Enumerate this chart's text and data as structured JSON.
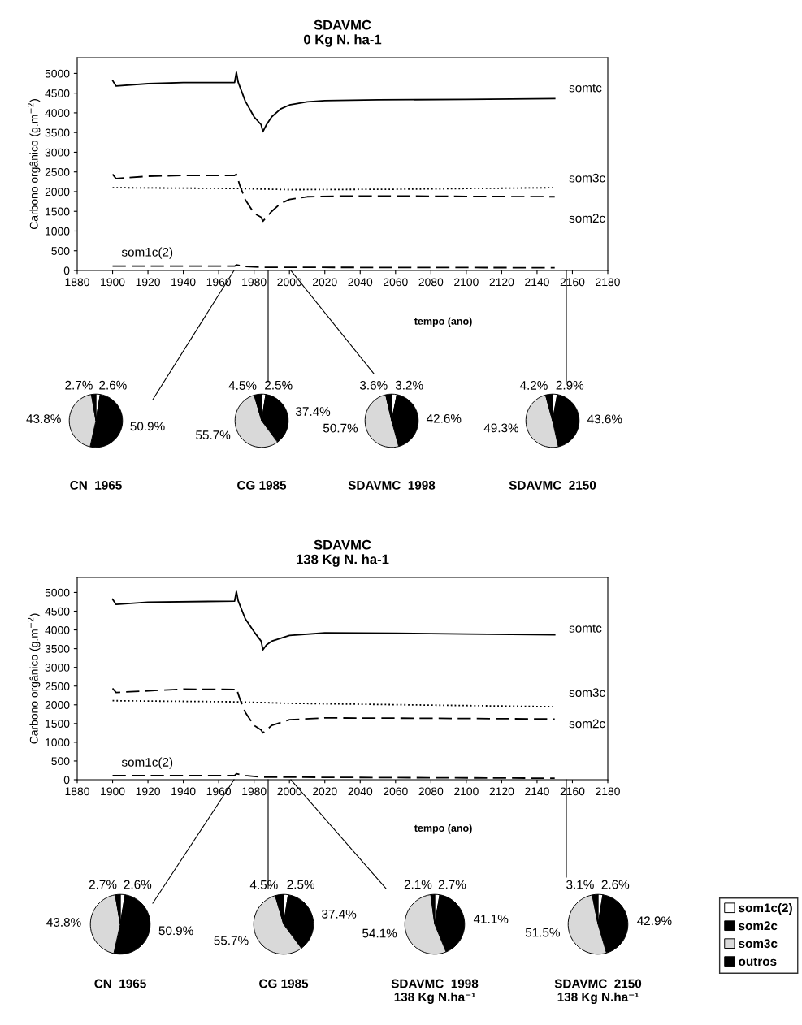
{
  "chart_data": [
    {
      "type": "line",
      "title": "SDAVMC\n0 Kg N. ha-1",
      "xlabel": "tempo (ano)",
      "ylabel": "Carbono orgânico (g.m$^{−2}$)",
      "xlim": [
        1880,
        2180
      ],
      "xticks": [
        1880,
        1900,
        1920,
        1940,
        1960,
        1980,
        2000,
        2020,
        2040,
        2060,
        2080,
        2100,
        2120,
        2140,
        2160,
        2180
      ],
      "ylim": [
        0,
        5400
      ],
      "yticks": [
        0,
        500,
        1000,
        1500,
        2000,
        2500,
        3000,
        3500,
        4000,
        4500,
        5000
      ],
      "series": [
        {
          "name": "somtc",
          "color": "#000000",
          "line_style": "solid",
          "x": [
            1900,
            1902,
            1920,
            1940,
            1969,
            1970,
            1971,
            1975,
            1980,
            1984,
            1985,
            1987,
            1990,
            1995,
            2000,
            2010,
            2020,
            2050,
            2100,
            2150
          ],
          "values": [
            4820,
            4680,
            4740,
            4770,
            4770,
            5030,
            4780,
            4300,
            3900,
            3700,
            3520,
            3700,
            3900,
            4100,
            4200,
            4280,
            4310,
            4330,
            4340,
            4360
          ]
        },
        {
          "name": "som2c",
          "color": "#000000",
          "line_style": "dashed",
          "x": [
            1900,
            1902,
            1920,
            1940,
            1969,
            1970,
            1972,
            1975,
            1980,
            1984,
            1985,
            1987,
            1990,
            1995,
            2000,
            2010,
            2030,
            2060,
            2100,
            2150
          ],
          "values": [
            2440,
            2330,
            2390,
            2410,
            2410,
            2440,
            2150,
            1800,
            1450,
            1350,
            1250,
            1350,
            1500,
            1700,
            1800,
            1870,
            1890,
            1890,
            1880,
            1870
          ]
        },
        {
          "name": "som3c",
          "color": "#000000",
          "line_style": "dotted",
          "x": [
            1900,
            1970,
            2000,
            2060,
            2150
          ],
          "values": [
            2100,
            2080,
            2050,
            2060,
            2100
          ]
        },
        {
          "name": "som1c(2)",
          "color": "#000000",
          "line_style": "dashed",
          "x": [
            1900,
            1969,
            1970,
            1975,
            1985,
            2150
          ],
          "values": [
            110,
            110,
            140,
            100,
            80,
            70
          ]
        }
      ]
    },
    {
      "type": "pie",
      "title": "CN  1965",
      "categories": [
        null,
        null,
        null,
        null
      ],
      "colors": [
        "#ffffff",
        "#000000",
        "#d9d9d9",
        "#000000"
      ],
      "values": [
        2.6,
        50.9,
        43.8,
        2.7
      ],
      "value_labels": [
        "2.6%",
        "50.9%",
        "43.8%",
        "2.7%"
      ]
    },
    {
      "type": "pie",
      "title": "CG 1985",
      "categories": [
        null,
        null,
        null,
        null
      ],
      "colors": [
        "#ffffff",
        "#000000",
        "#d9d9d9",
        "#000000"
      ],
      "values": [
        2.5,
        37.4,
        55.7,
        4.5
      ],
      "value_labels": [
        "2.5%",
        "37.4%",
        "55.7%",
        "4.5%"
      ]
    },
    {
      "type": "pie",
      "title": "SDAVMC  1998",
      "categories": [
        null,
        null,
        null,
        null
      ],
      "colors": [
        "#ffffff",
        "#000000",
        "#d9d9d9",
        "#000000"
      ],
      "values": [
        3.2,
        42.6,
        50.7,
        3.6
      ],
      "value_labels": [
        "3.2%",
        "42.6%",
        "50.7%",
        "3.6%"
      ]
    },
    {
      "type": "pie",
      "title": "SDAVMC  2150",
      "categories": [
        null,
        null,
        null,
        null
      ],
      "colors": [
        "#ffffff",
        "#000000",
        "#d9d9d9",
        "#000000"
      ],
      "values": [
        2.9,
        43.6,
        49.3,
        4.2
      ],
      "value_labels": [
        "2.9%",
        "43.6%",
        "49.3%",
        "4.2%"
      ]
    },
    {
      "type": "line",
      "title": "SDAVMC\n138 Kg N. ha-1",
      "xlabel": "tempo (ano)",
      "ylabel": "Carbono orgânico (g.m$^{−2}$)",
      "xlim": [
        1880,
        2180
      ],
      "xticks": [
        1880,
        1900,
        1920,
        1940,
        1960,
        1980,
        2000,
        2020,
        2040,
        2060,
        2080,
        2100,
        2120,
        2140,
        2160,
        2180
      ],
      "ylim": [
        0,
        5400
      ],
      "yticks": [
        0,
        500,
        1000,
        1500,
        2000,
        2500,
        3000,
        3500,
        4000,
        4500,
        5000
      ],
      "series": [
        {
          "name": "somtc",
          "color": "#000000",
          "line_style": "solid",
          "x": [
            1900,
            1902,
            1920,
            1969,
            1970,
            1971,
            1975,
            1980,
            1984,
            1985,
            1987,
            1990,
            2000,
            2020,
            2060,
            2100,
            2150
          ],
          "values": [
            4820,
            4680,
            4740,
            4770,
            5030,
            4780,
            4300,
            3950,
            3700,
            3470,
            3600,
            3700,
            3850,
            3920,
            3910,
            3890,
            3870
          ]
        },
        {
          "name": "som2c",
          "color": "#000000",
          "line_style": "dashed",
          "x": [
            1900,
            1902,
            1940,
            1969,
            1970,
            1972,
            1975,
            1980,
            1984,
            1985,
            1990,
            2000,
            2020,
            2080,
            2150
          ],
          "values": [
            2440,
            2330,
            2420,
            2410,
            2440,
            2150,
            1800,
            1450,
            1330,
            1250,
            1450,
            1600,
            1650,
            1640,
            1620
          ]
        },
        {
          "name": "som3c",
          "color": "#000000",
          "line_style": "dotted",
          "x": [
            1900,
            1970,
            2000,
            2100,
            2150
          ],
          "values": [
            2110,
            2080,
            2040,
            1980,
            1950
          ]
        },
        {
          "name": "som1c(2)",
          "color": "#000000",
          "line_style": "dashed",
          "x": [
            1900,
            1969,
            1970,
            1975,
            1985,
            2150
          ],
          "values": [
            110,
            110,
            160,
            110,
            70,
            40
          ]
        }
      ]
    },
    {
      "type": "pie",
      "title": "CN  1965",
      "categories": [
        null,
        null,
        null,
        null
      ],
      "colors": [
        "#ffffff",
        "#000000",
        "#d9d9d9",
        "#000000"
      ],
      "values": [
        2.6,
        50.9,
        43.8,
        2.7
      ],
      "value_labels": [
        "2.6%",
        "50.9%",
        "43.8%",
        "2.7%"
      ]
    },
    {
      "type": "pie",
      "title": "CG 1985",
      "categories": [
        null,
        null,
        null,
        null
      ],
      "colors": [
        "#ffffff",
        "#000000",
        "#d9d9d9",
        "#000000"
      ],
      "values": [
        2.5,
        37.4,
        55.7,
        4.5
      ],
      "value_labels": [
        "2.5%",
        "37.4%",
        "55.7%",
        "4.5%"
      ]
    },
    {
      "type": "pie",
      "title": "SDAVMC  1998\n138 Kg N.ha⁻¹",
      "categories": [
        null,
        null,
        null,
        null
      ],
      "colors": [
        "#ffffff",
        "#000000",
        "#d9d9d9",
        "#000000"
      ],
      "values": [
        2.7,
        41.1,
        54.1,
        2.1
      ],
      "value_labels": [
        "2.7%",
        "41.1%",
        "54.1%",
        "2.1%"
      ]
    },
    {
      "type": "pie",
      "title": "SDAVMC  2150\n138 Kg N.ha⁻¹",
      "categories": [
        "som1c(2)",
        "som2c",
        "som3c",
        "outros"
      ],
      "colors": [
        "#ffffff",
        "#000000",
        "#d9d9d9",
        "#000000"
      ],
      "values": [
        2.6,
        42.9,
        51.5,
        3.1
      ],
      "value_labels": [
        "2.6%",
        "42.9%",
        "51.5%",
        "3.1%"
      ],
      "legend": "right"
    }
  ]
}
